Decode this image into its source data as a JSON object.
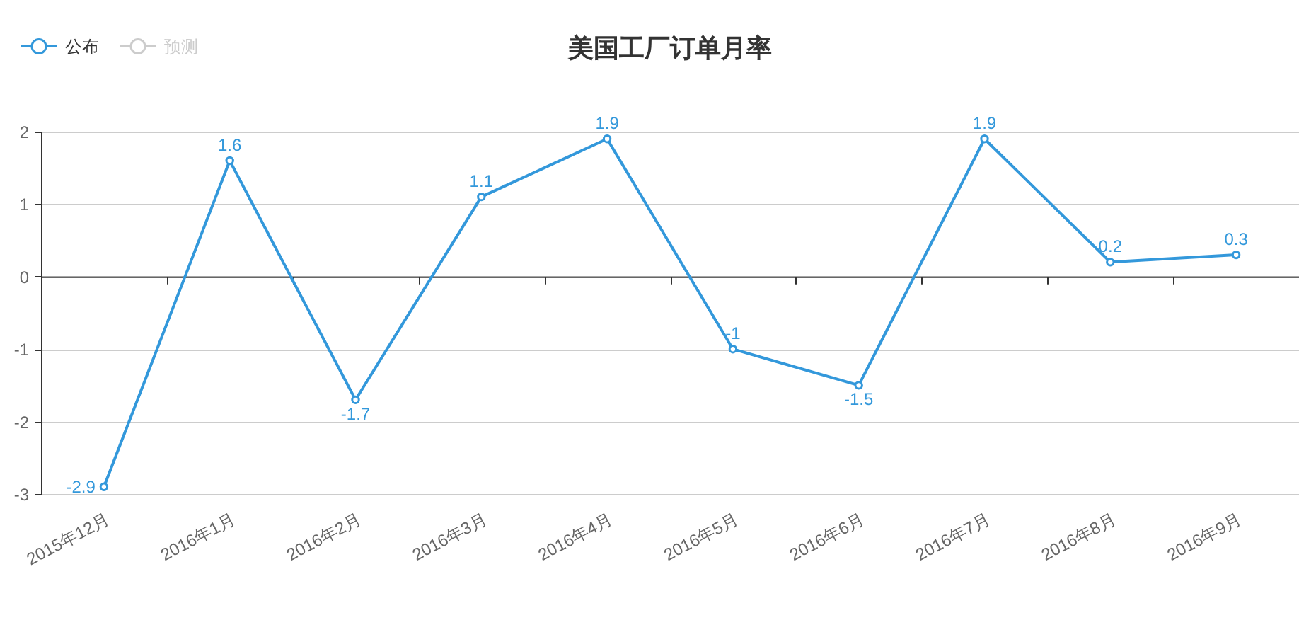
{
  "chart_data": {
    "type": "line",
    "title": "美国工厂订单月率",
    "categories": [
      "2015年12月",
      "2016年1月",
      "2016年2月",
      "2016年3月",
      "2016年4月",
      "2016年5月",
      "2016年6月",
      "2016年7月",
      "2016年8月",
      "2016年9月"
    ],
    "series": [
      {
        "name": "公布",
        "color": "#3398db",
        "values": [
          -2.9,
          1.6,
          -1.7,
          1.1,
          1.9,
          -1,
          -1.5,
          1.9,
          0.2,
          0.3
        ]
      },
      {
        "name": "预测",
        "color": "#cccccc",
        "values": [
          null,
          null,
          null,
          null,
          null,
          null,
          null,
          null,
          null,
          null
        ]
      }
    ],
    "ylim": [
      -3,
      2
    ],
    "yticks": [
      -3,
      -2,
      -1,
      0,
      1,
      2
    ],
    "grid": "y",
    "legend": "top left",
    "marker": "circle",
    "data_labels": true
  }
}
